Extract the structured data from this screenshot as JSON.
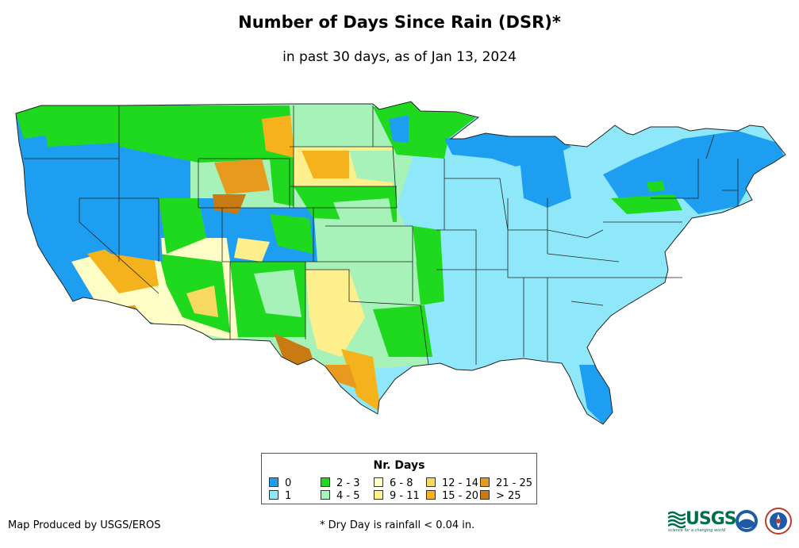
{
  "title": "Number of Days Since Rain (DSR)*",
  "subtitle": "in past 30 days, as of Jan 13, 2024",
  "legend": {
    "title": "Nr. Days",
    "items": [
      {
        "label": "0",
        "color": "#1e9ef0"
      },
      {
        "label": "1",
        "color": "#8ee8fa"
      },
      {
        "label": "2 - 3",
        "color": "#1ed91e"
      },
      {
        "label": "4 - 5",
        "color": "#a6f2b8"
      },
      {
        "label": "6 - 8",
        "color": "#fefec6"
      },
      {
        "label": "9 - 11",
        "color": "#fdf08c"
      },
      {
        "label": "12 - 14",
        "color": "#f7d962"
      },
      {
        "label": "15 - 20",
        "color": "#f4b21c"
      },
      {
        "label": "21 - 25",
        "color": "#e89a1e"
      },
      {
        "label": "> 25",
        "color": "#c97a12"
      }
    ]
  },
  "footer": {
    "credit": "Map Produced by USGS/EROS",
    "note": "* Dry Day is rainfall < 0.04 in."
  },
  "logos": {
    "usgs": "USGS",
    "usgs_tagline": "science for a changing world"
  }
}
